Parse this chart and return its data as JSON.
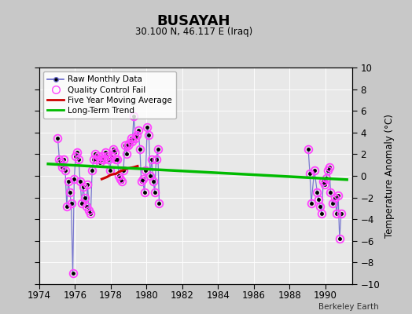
{
  "title": "BUSAYAH",
  "subtitle": "30.100 N, 46.117 E (Iraq)",
  "ylabel": "Temperature Anomaly (°C)",
  "credit": "Berkeley Earth",
  "xlim": [
    1974.0,
    1991.5
  ],
  "ylim": [
    -10,
    10
  ],
  "yticks": [
    -10,
    -8,
    -6,
    -4,
    -2,
    0,
    2,
    4,
    6,
    8,
    10
  ],
  "xticks": [
    1974,
    1976,
    1978,
    1980,
    1982,
    1984,
    1986,
    1988,
    1990
  ],
  "bg_color": "#c8c8c8",
  "plot_bg_color": "#e8e8e8",
  "raw_color": "#6666cc",
  "raw_marker_color": "#000000",
  "qc_color": "#ff44ff",
  "moving_avg_color": "#cc0000",
  "trend_color": "#00bb00",
  "raw_monthly_x": [
    1975.04,
    1975.13,
    1975.21,
    1975.29,
    1975.38,
    1975.46,
    1975.54,
    1975.63,
    1975.71,
    1975.79,
    1975.88,
    1975.96,
    1976.04,
    1976.13,
    1976.21,
    1976.29,
    1976.38,
    1976.46,
    1976.54,
    1976.63,
    1976.71,
    1976.79,
    1976.88,
    1976.96,
    1977.04,
    1977.13,
    1977.21,
    1977.29,
    1977.38,
    1977.46,
    1977.54,
    1977.63,
    1977.71,
    1977.79,
    1977.88,
    1977.96,
    1978.04,
    1978.13,
    1978.21,
    1978.29,
    1978.38,
    1978.46,
    1978.54,
    1978.63,
    1978.71,
    1978.79,
    1978.88,
    1978.96,
    1979.04,
    1979.13,
    1979.21,
    1979.29,
    1979.38,
    1979.46,
    1979.54,
    1979.63,
    1979.71,
    1979.79,
    1979.88,
    1979.96,
    1980.04,
    1980.13,
    1980.21,
    1980.29,
    1980.38,
    1980.46,
    1980.54,
    1980.63,
    1980.71,
    1989.04,
    1989.13,
    1989.21,
    1989.38,
    1989.54,
    1989.63,
    1989.71,
    1989.79,
    1989.88,
    1989.96,
    1990.04,
    1990.13,
    1990.21,
    1990.29,
    1990.38,
    1990.54,
    1990.63,
    1990.71,
    1990.79,
    1990.88
  ],
  "raw_monthly_y": [
    3.5,
    1.5,
    1.2,
    0.8,
    1.5,
    0.5,
    -2.8,
    -0.5,
    -1.5,
    -2.5,
    -9.0,
    -0.3,
    1.8,
    2.2,
    1.5,
    -0.5,
    -2.5,
    -1.0,
    -2.0,
    -2.8,
    -0.8,
    -3.2,
    -3.5,
    0.5,
    1.5,
    2.0,
    1.5,
    1.8,
    1.2,
    1.5,
    1.8,
    1.5,
    2.2,
    1.8,
    1.5,
    0.5,
    1.8,
    2.5,
    2.2,
    1.5,
    1.5,
    0.0,
    -0.3,
    -0.5,
    0.5,
    2.8,
    2.0,
    2.8,
    3.0,
    3.5,
    3.2,
    5.5,
    3.5,
    3.8,
    4.2,
    2.5,
    -0.5,
    -0.3,
    -1.5,
    0.5,
    4.5,
    3.8,
    0.0,
    1.5,
    -0.5,
    -1.5,
    1.5,
    2.5,
    -2.5,
    2.5,
    0.2,
    -2.5,
    0.5,
    -1.5,
    -2.2,
    -2.8,
    -3.5,
    -0.5,
    -0.8,
    -0.2,
    0.5,
    0.8,
    -1.5,
    -2.5,
    -2.0,
    -3.5,
    -1.8,
    -5.8,
    -3.5
  ],
  "qc_fail_x": [
    1975.04,
    1975.13,
    1975.21,
    1975.29,
    1975.38,
    1975.46,
    1975.54,
    1975.63,
    1975.71,
    1975.79,
    1975.88,
    1975.96,
    1976.04,
    1976.13,
    1976.21,
    1976.29,
    1976.38,
    1976.46,
    1976.54,
    1976.63,
    1976.71,
    1976.79,
    1976.88,
    1976.96,
    1977.04,
    1977.13,
    1977.21,
    1977.29,
    1977.38,
    1977.46,
    1977.54,
    1977.63,
    1977.71,
    1977.79,
    1977.88,
    1977.96,
    1978.04,
    1978.13,
    1978.21,
    1978.29,
    1978.38,
    1978.46,
    1978.54,
    1978.63,
    1978.71,
    1978.79,
    1978.88,
    1978.96,
    1979.04,
    1979.13,
    1979.21,
    1979.29,
    1979.38,
    1979.46,
    1979.54,
    1979.63,
    1979.71,
    1979.79,
    1979.88,
    1979.96,
    1980.04,
    1980.13,
    1980.21,
    1980.29,
    1980.38,
    1980.46,
    1980.54,
    1980.63,
    1980.71,
    1989.04,
    1989.13,
    1989.21,
    1989.38,
    1989.54,
    1989.63,
    1989.71,
    1989.79,
    1989.88,
    1989.96,
    1990.04,
    1990.13,
    1990.21,
    1990.29,
    1990.38,
    1990.54,
    1990.63,
    1990.71,
    1990.79,
    1990.88
  ],
  "qc_fail_y": [
    3.5,
    1.5,
    1.2,
    0.8,
    1.5,
    0.5,
    -2.8,
    -0.5,
    -1.5,
    -2.5,
    -9.0,
    -0.3,
    1.8,
    2.2,
    1.5,
    -0.5,
    -2.5,
    -1.0,
    -2.0,
    -2.8,
    -0.8,
    -3.2,
    -3.5,
    0.5,
    1.5,
    2.0,
    1.5,
    1.8,
    1.2,
    1.5,
    1.8,
    1.5,
    2.2,
    1.8,
    1.5,
    0.5,
    1.8,
    2.5,
    2.2,
    1.5,
    1.5,
    0.0,
    -0.3,
    -0.5,
    0.5,
    2.8,
    2.0,
    2.8,
    3.0,
    3.5,
    3.2,
    5.5,
    3.5,
    3.8,
    4.2,
    2.5,
    -0.5,
    -0.3,
    -1.5,
    0.5,
    4.5,
    3.8,
    0.0,
    1.5,
    -0.5,
    -1.5,
    1.5,
    2.5,
    -2.5,
    2.5,
    0.2,
    -2.5,
    0.5,
    -1.5,
    -2.2,
    -2.8,
    -3.5,
    -0.5,
    -0.8,
    -0.2,
    0.5,
    0.8,
    -1.5,
    -2.5,
    -2.0,
    -3.5,
    -1.8,
    -5.8,
    -3.5
  ],
  "moving_avg_x": [
    1977.5,
    1977.8,
    1978.0,
    1978.3,
    1978.5,
    1978.8,
    1979.0,
    1979.3,
    1979.5
  ],
  "moving_avg_y": [
    -0.3,
    -0.1,
    0.1,
    0.2,
    0.4,
    0.6,
    0.7,
    0.8,
    0.9
  ],
  "trend_x": [
    1974.5,
    1991.2
  ],
  "trend_y": [
    1.1,
    -0.35
  ]
}
